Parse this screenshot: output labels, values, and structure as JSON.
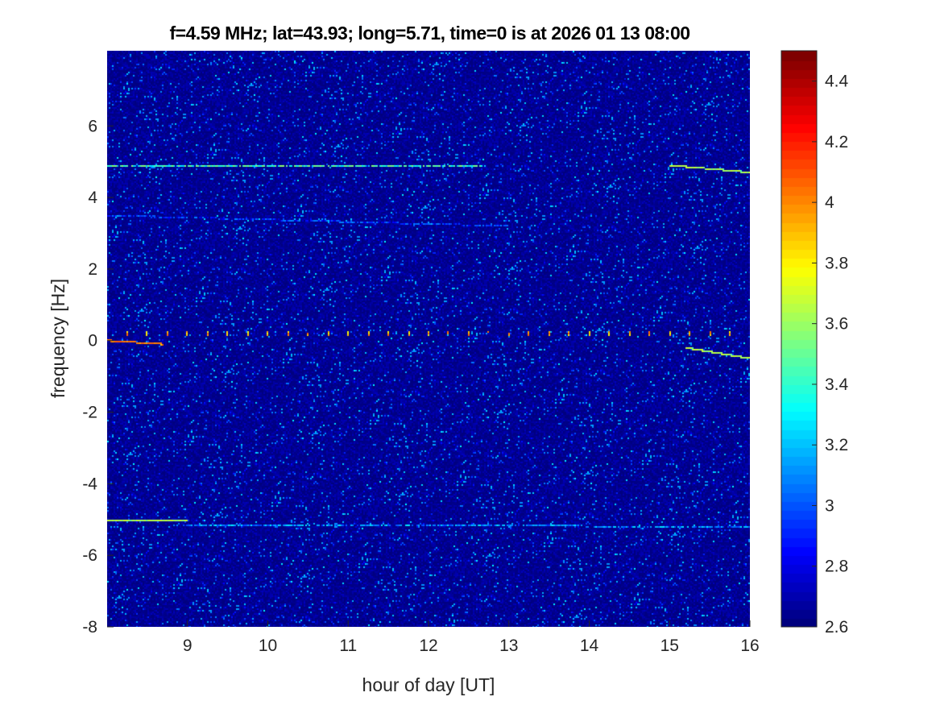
{
  "chart_data": {
    "type": "heatmap",
    "title": "f=4.59 MHz;  lat=43.93; long=5.71, time=0 is at 2026 01 13 08:00",
    "xlabel": "hour of day [UT]",
    "ylabel": "frequency [Hz]",
    "xlim": [
      8,
      16
    ],
    "ylim": [
      -8,
      8.1
    ],
    "xticks": [
      9,
      10,
      11,
      12,
      13,
      14,
      15,
      16
    ],
    "yticks": [
      -8,
      -6,
      -4,
      -2,
      0,
      2,
      4,
      6
    ],
    "colormap": "jet",
    "clim": [
      2.6,
      4.5
    ],
    "colorbar_ticks": [
      2.6,
      2.8,
      3,
      3.2,
      3.4,
      3.6,
      3.8,
      4,
      4.2,
      4.4
    ],
    "grid": false,
    "traces": [
      {
        "x": [
          8,
          12.7
        ],
        "y": [
          4.9,
          4.9
        ],
        "value": 3.5
      },
      {
        "x": [
          15,
          16
        ],
        "y": [
          4.9,
          4.7
        ],
        "value": 3.6
      },
      {
        "x": [
          8,
          9
        ],
        "y": [
          -5.05,
          -5.05
        ],
        "value": 3.6
      },
      {
        "x": [
          9,
          16
        ],
        "y": [
          -5.15,
          -5.2
        ],
        "value": 3.2
      },
      {
        "x": [
          8,
          8.7
        ],
        "y": [
          0,
          -0.1
        ],
        "value": 4.0
      },
      {
        "x": [
          15.2,
          16
        ],
        "y": [
          -0.2,
          -0.5
        ],
        "value": 3.6
      },
      {
        "x": [
          8,
          13
        ],
        "y": [
          3.5,
          3.2
        ],
        "value": 3.0
      }
    ],
    "periodic_marks": {
      "y": 0.2,
      "x_start": 8.25,
      "x_step": 0.25,
      "value": 3.7
    }
  }
}
